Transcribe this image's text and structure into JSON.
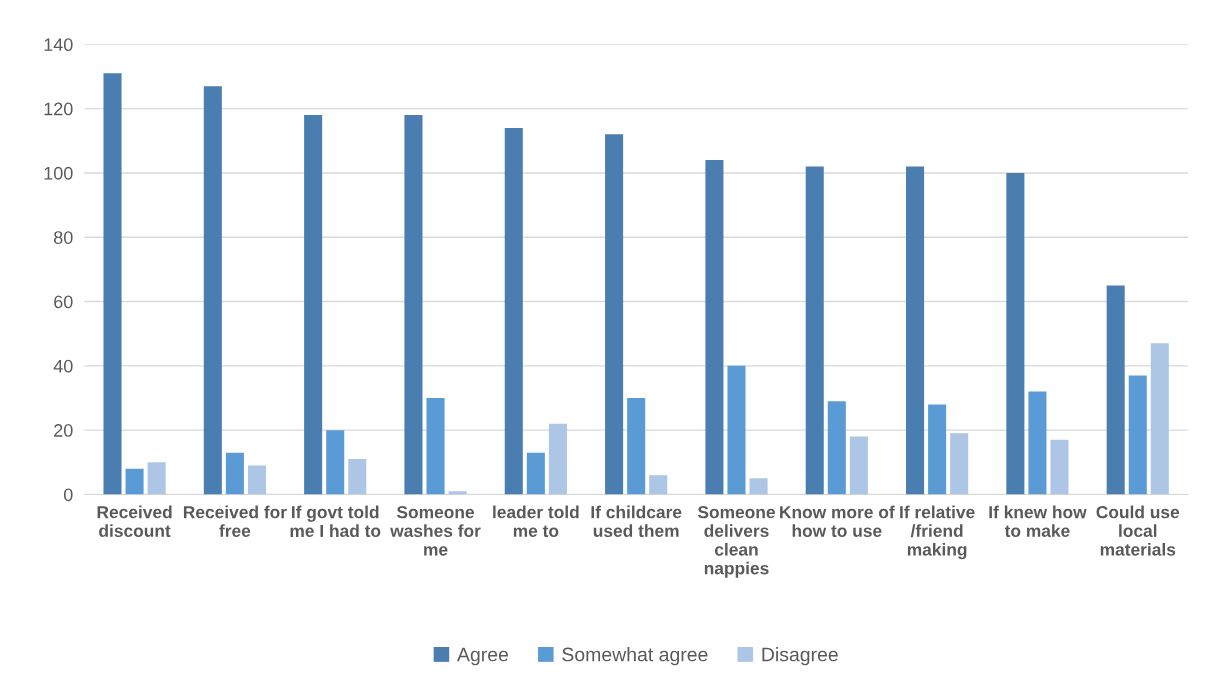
{
  "chart_data": {
    "type": "bar",
    "categories": [
      "Received discount",
      "Received for free",
      "If govt told me I had to",
      "Someone washes for me",
      "leader told me to",
      "If childcare used them",
      "Someone delivers clean nappies",
      "Know more of how to use",
      "If relative /friend making",
      "If knew how to make",
      "Could use local materials"
    ],
    "series": [
      {
        "name": "Agree",
        "color": "#4a7eb0",
        "values": [
          131,
          127,
          118,
          118,
          114,
          112,
          104,
          102,
          102,
          100,
          65
        ]
      },
      {
        "name": "Somewhat agree",
        "color": "#5b9bd5",
        "values": [
          8,
          13,
          20,
          30,
          13,
          30,
          40,
          29,
          28,
          32,
          37
        ]
      },
      {
        "name": "Disagree",
        "color": "#adc6e5",
        "values": [
          10,
          9,
          11,
          1,
          22,
          6,
          5,
          18,
          19,
          17,
          47
        ]
      }
    ],
    "ylim": [
      0,
      140
    ],
    "yticks": [
      0,
      20,
      40,
      60,
      80,
      100,
      120,
      140
    ],
    "grid": "y",
    "legend": "bottom"
  }
}
